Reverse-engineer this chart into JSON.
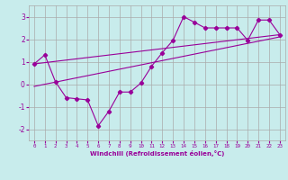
{
  "xlabel": "Windchill (Refroidissement éolien,°C)",
  "background_color": "#c8ecec",
  "grid_color": "#aaaaaa",
  "line_color": "#990099",
  "xlim": [
    -0.5,
    23.5
  ],
  "ylim": [
    -2.5,
    3.5
  ],
  "yticks": [
    -2,
    -1,
    0,
    1,
    2,
    3
  ],
  "xticks": [
    0,
    1,
    2,
    3,
    4,
    5,
    6,
    7,
    8,
    9,
    10,
    11,
    12,
    13,
    14,
    15,
    16,
    17,
    18,
    19,
    20,
    21,
    22,
    23
  ],
  "series1_x": [
    0,
    1,
    2,
    3,
    4,
    5,
    6,
    7,
    8,
    9,
    10,
    11,
    12,
    13,
    14,
    15,
    16,
    17,
    18,
    19,
    20,
    21,
    22,
    23
  ],
  "series1_y": [
    0.9,
    1.3,
    0.1,
    -0.6,
    -0.65,
    -0.7,
    -1.85,
    -1.2,
    -0.35,
    -0.35,
    0.05,
    0.8,
    1.4,
    1.95,
    3.0,
    2.75,
    2.5,
    2.5,
    2.5,
    2.5,
    1.95,
    2.85,
    2.85,
    2.2
  ],
  "series2_x": [
    0,
    23
  ],
  "series2_y": [
    0.9,
    2.2
  ],
  "series3_x": [
    0,
    23
  ],
  "series3_y": [
    -0.1,
    2.1
  ]
}
